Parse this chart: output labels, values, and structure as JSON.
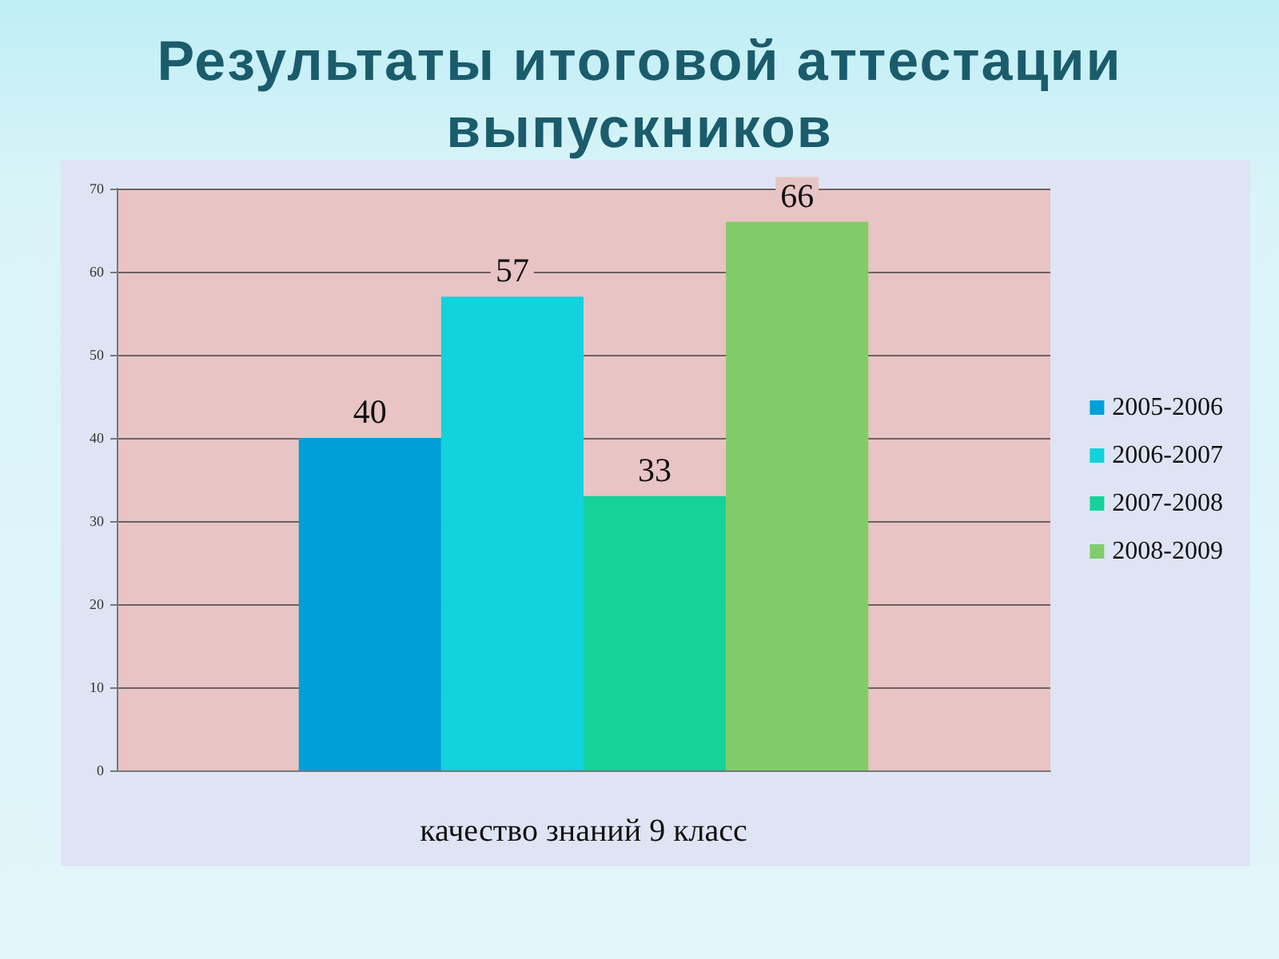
{
  "chart_data": {
    "type": "bar",
    "title": "Результаты итоговой аттестации выпускников",
    "categories": [
      "качество знаний 9 класс"
    ],
    "series": [
      {
        "name": "2005-2006",
        "color": "#009fd9",
        "values": [
          40
        ]
      },
      {
        "name": "2006-2007",
        "color": "#12d2dc",
        "values": [
          57
        ]
      },
      {
        "name": "2007-2008",
        "color": "#14d29a",
        "values": [
          33
        ]
      },
      {
        "name": "2008-2009",
        "color": "#80cc6a",
        "values": [
          66
        ]
      }
    ],
    "ylim": [
      0,
      70
    ],
    "yticks": [
      0,
      10,
      20,
      30,
      40,
      50,
      60,
      70
    ],
    "grid": "y",
    "legend": "right",
    "data_labels": true
  }
}
